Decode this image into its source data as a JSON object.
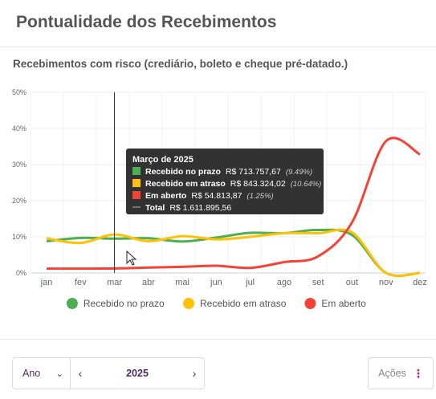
{
  "header": {
    "title": "Pontualidade dos Recebimentos"
  },
  "subtitle": "Recebimentos com risco (crediário, boleto e cheque pré-datado.)",
  "chart_data": {
    "type": "line",
    "categories": [
      "jan",
      "fev",
      "mar",
      "abr",
      "mai",
      "jun",
      "jul",
      "ago",
      "set",
      "out",
      "nov",
      "dez"
    ],
    "ylim": [
      0,
      50
    ],
    "yticks": [
      "0%",
      "10%",
      "20%",
      "30%",
      "40%",
      "50%"
    ],
    "grid": true,
    "legend_position": "bottom",
    "series": [
      {
        "name": "Recebido no prazo",
        "color": "#4caf50",
        "values": [
          8.8,
          9.7,
          9.49,
          9.6,
          8.7,
          9.8,
          11.1,
          11.0,
          11.9,
          10.5,
          0,
          0
        ]
      },
      {
        "name": "Recebido em atraso",
        "color": "#ffc107",
        "values": [
          9.6,
          8.3,
          10.64,
          8.8,
          10.2,
          9.3,
          10.0,
          11.0,
          11.0,
          11.2,
          0,
          0
        ]
      },
      {
        "name": "Em aberto",
        "color": "#f44336",
        "values": [
          1.2,
          1.2,
          1.25,
          1.5,
          1.7,
          2.0,
          1.4,
          3.0,
          4.6,
          14.0,
          36.5,
          32.8
        ]
      }
    ],
    "tooltip": {
      "title": "Março de 2025",
      "rows": [
        {
          "label": "Recebido no prazo",
          "value": "R$ 713.757,67",
          "pct": "(9.49%)",
          "color": "#4caf50"
        },
        {
          "label": "Recebido em atraso",
          "value": "R$ 843.324,02",
          "pct": "(10.64%)",
          "color": "#ffc107"
        },
        {
          "label": "Em aberto",
          "value": "R$ 54.813,87",
          "pct": "(1.25%)",
          "color": "#f44336"
        },
        {
          "label": "Total",
          "value": "R$ 1.611.895,56",
          "pct": "",
          "color": "line"
        }
      ]
    },
    "hover_category": "mar"
  },
  "controls": {
    "period_select": "Ano",
    "year": "2025",
    "actions_label": "Ações"
  }
}
